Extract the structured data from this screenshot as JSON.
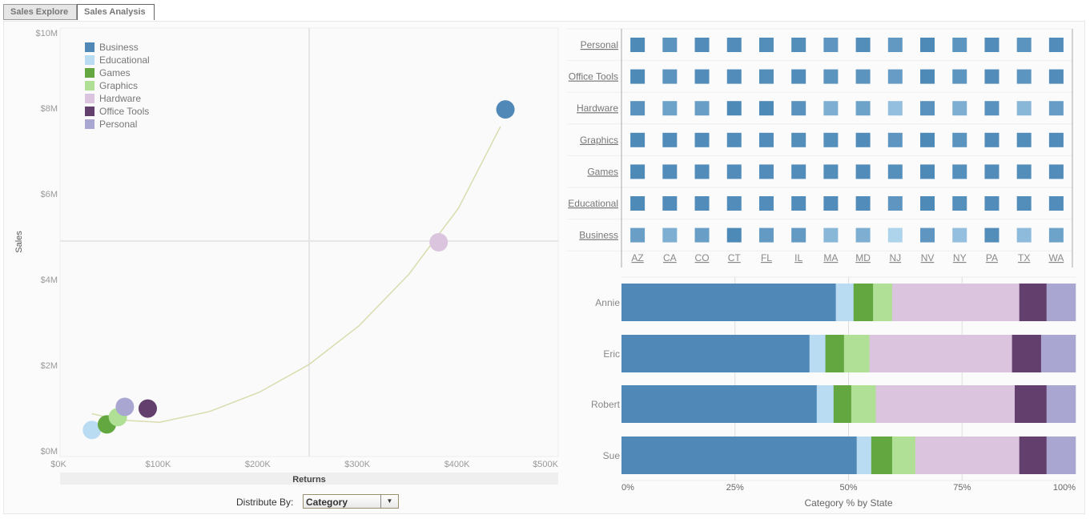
{
  "tabs": [
    {
      "label": "Sales Explore",
      "active": false
    },
    {
      "label": "Sales Analysis",
      "active": true
    }
  ],
  "controls": {
    "distribute_label": "Distribute By:",
    "distribute_value": "Category"
  },
  "colors": {
    "Business": "#5089b8",
    "Educational": "#b9dcf2",
    "Games": "#62a740",
    "Graphics": "#afe095",
    "Hardware": "#dbc5de",
    "Office Tools": "#633f6e",
    "Personal": "#aaa6d2",
    "heat_light": "#b9dcf2",
    "heat_dark": "#4e8ab8"
  },
  "chart_data": [
    {
      "type": "scatter",
      "xlabel": "Returns",
      "ylabel": "Sales",
      "xlim": [
        0,
        500000
      ],
      "ylim": [
        0,
        10000000
      ],
      "x_ticks": [
        "$0K",
        "$100K",
        "$200K",
        "$300K",
        "$400K",
        "$500K"
      ],
      "y_ticks": [
        "$0M",
        "$2M",
        "$4M",
        "$6M",
        "$8M",
        "$10M"
      ],
      "legend": [
        "Business",
        "Educational",
        "Games",
        "Graphics",
        "Hardware",
        "Office Tools",
        "Personal"
      ],
      "legend_position": "top-left",
      "reference_lines": {
        "x": 250000,
        "y": 5030000
      },
      "points": [
        {
          "name": "Business",
          "x": 447000,
          "y": 8100000
        },
        {
          "name": "Hardware",
          "x": 380000,
          "y": 5000000
        },
        {
          "name": "Educational",
          "x": 32000,
          "y": 620000
        },
        {
          "name": "Games",
          "x": 47000,
          "y": 750000
        },
        {
          "name": "Graphics",
          "x": 58000,
          "y": 920000
        },
        {
          "name": "Personal",
          "x": 65000,
          "y": 1160000
        },
        {
          "name": "Office Tools",
          "x": 88000,
          "y": 1120000
        }
      ],
      "trendline": [
        [
          32000,
          1000000
        ],
        [
          60000,
          850000
        ],
        [
          100000,
          800000
        ],
        [
          150000,
          1050000
        ],
        [
          200000,
          1500000
        ],
        [
          250000,
          2150000
        ],
        [
          300000,
          3050000
        ],
        [
          350000,
          4250000
        ],
        [
          400000,
          5800000
        ],
        [
          442000,
          7700000
        ]
      ]
    },
    {
      "type": "heatmap",
      "rows": [
        "Personal",
        "Office Tools",
        "Hardware",
        "Graphics",
        "Games",
        "Educational",
        "Business"
      ],
      "columns": [
        "AZ",
        "CA",
        "CO",
        "CT",
        "FL",
        "IL",
        "MA",
        "MD",
        "NJ",
        "NV",
        "NY",
        "PA",
        "TX",
        "WA"
      ],
      "values": [
        [
          1,
          0.88,
          0.97,
          0.97,
          0.95,
          0.95,
          0.85,
          0.95,
          0.82,
          1,
          0.87,
          0.97,
          0.88,
          0.97
        ],
        [
          1,
          0.88,
          0.97,
          0.97,
          0.95,
          0.97,
          0.88,
          0.88,
          0.78,
          1,
          0.87,
          0.97,
          0.87,
          0.97
        ],
        [
          0.9,
          0.7,
          0.75,
          1,
          1,
          0.9,
          0.55,
          0.7,
          0.35,
          0.9,
          0.55,
          0.9,
          0.45,
          0.78
        ],
        [
          1,
          0.97,
          0.97,
          0.97,
          0.97,
          0.95,
          0.93,
          0.97,
          0.85,
          1,
          0.88,
          0.97,
          0.95,
          0.97
        ],
        [
          1,
          0.97,
          0.97,
          0.97,
          0.97,
          0.97,
          0.95,
          0.97,
          0.93,
          1,
          0.93,
          0.97,
          0.95,
          0.97
        ],
        [
          1,
          0.97,
          0.97,
          0.97,
          0.97,
          0.97,
          0.97,
          0.97,
          0.85,
          1,
          0.93,
          0.97,
          0.95,
          0.97
        ],
        [
          0.75,
          0.55,
          0.75,
          1,
          0.8,
          0.8,
          0.45,
          0.55,
          0.1,
          0.85,
          0.35,
          0.95,
          0.4,
          0.7
        ]
      ]
    },
    {
      "type": "bar",
      "stacked": true,
      "orientation": "horizontal",
      "xlabel": "Category % by State",
      "x_ticks": [
        "0%",
        "25%",
        "50%",
        "75%",
        "100%"
      ],
      "categories": [
        "Annie",
        "Eric",
        "Robert",
        "Sue"
      ],
      "series": [
        {
          "name": "Business",
          "values": [
            47.2,
            41.4,
            43.0,
            51.8
          ]
        },
        {
          "name": "Educational",
          "values": [
            3.9,
            3.5,
            3.7,
            3.2
          ]
        },
        {
          "name": "Games",
          "values": [
            4.3,
            4.1,
            3.9,
            4.6
          ]
        },
        {
          "name": "Graphics",
          "values": [
            4.2,
            5.6,
            5.4,
            5.1
          ]
        },
        {
          "name": "Hardware",
          "values": [
            28.0,
            31.4,
            30.6,
            22.9
          ]
        },
        {
          "name": "Office Tools",
          "values": [
            6.0,
            6.4,
            7.0,
            6.0
          ]
        },
        {
          "name": "Personal",
          "values": [
            6.4,
            7.6,
            6.4,
            6.4
          ]
        }
      ]
    }
  ]
}
